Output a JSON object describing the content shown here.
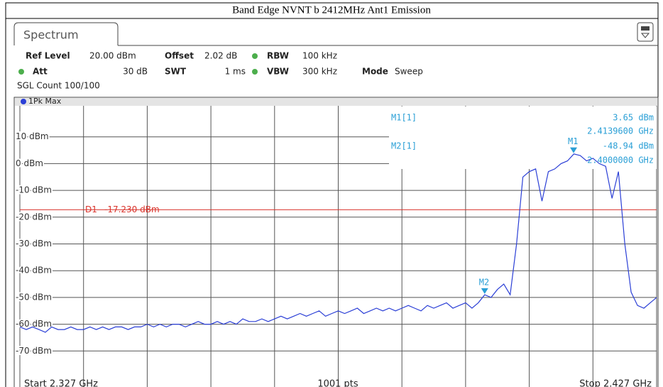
{
  "header": {
    "title": "Band Edge NVNT b 2412MHz Ant1 Emission"
  },
  "tab": "Spectrum",
  "settings": {
    "ref_level_label": "Ref Level",
    "ref_level": "20.00 dBm",
    "offset_label": "Offset",
    "offset": "2.02 dB",
    "rbw_label": "RBW",
    "rbw": "100 kHz",
    "att_label": "Att",
    "att": "30 dB",
    "swt_label": "SWT",
    "swt": "1 ms",
    "vbw_label": "VBW",
    "vbw": "300 kHz",
    "mode_label": "Mode",
    "mode": "Sweep",
    "sgl_count": "SGL Count 100/100"
  },
  "trace_label": "1Pk Max",
  "footer": {
    "start": "Start 2.327 GHz",
    "points": "1001 pts",
    "stop": "Stop 2.427 GHz"
  },
  "chart_data": {
    "type": "line",
    "xlim": [
      2.327,
      2.427
    ],
    "ylim": [
      -80,
      20
    ],
    "yticks": [
      {
        "value": 10,
        "label": "10 dBm"
      },
      {
        "value": 0,
        "label": "0 dBm"
      },
      {
        "value": -10,
        "label": "-10 dBm"
      },
      {
        "value": -20,
        "label": "-20 dBm"
      },
      {
        "value": -30,
        "label": "-30 dBm"
      },
      {
        "value": -40,
        "label": "-40 dBm"
      },
      {
        "value": -50,
        "label": "-50 dBm"
      },
      {
        "value": -60,
        "label": "-60 dBm"
      },
      {
        "value": -70,
        "label": "-70 dBm"
      }
    ],
    "grid": true,
    "display_line": {
      "label": "D1",
      "value": -17.23,
      "value_label": "-17.230 dBm",
      "color": "#d9332b"
    },
    "markers": [
      {
        "name": "M1",
        "readout": "M1[1]",
        "x": 2.41396,
        "y": 3.65,
        "x_label": "2.4139600 GHz",
        "y_label": "3.65 dBm"
      },
      {
        "name": "M2",
        "readout": "M2[1]",
        "x": 2.4,
        "y": -48.94,
        "x_label": "2.4000000 GHz",
        "y_label": "-48.94 dBm"
      }
    ],
    "series": [
      {
        "name": "1Pk Max",
        "color": "#2b3fd6",
        "x": [
          2.327,
          2.328,
          2.329,
          2.33,
          2.331,
          2.332,
          2.333,
          2.334,
          2.335,
          2.336,
          2.337,
          2.338,
          2.339,
          2.34,
          2.341,
          2.342,
          2.343,
          2.344,
          2.345,
          2.346,
          2.347,
          2.348,
          2.349,
          2.35,
          2.351,
          2.352,
          2.353,
          2.354,
          2.355,
          2.356,
          2.357,
          2.358,
          2.359,
          2.36,
          2.361,
          2.362,
          2.363,
          2.364,
          2.365,
          2.366,
          2.367,
          2.368,
          2.369,
          2.37,
          2.371,
          2.372,
          2.373,
          2.374,
          2.375,
          2.376,
          2.377,
          2.378,
          2.379,
          2.38,
          2.381,
          2.382,
          2.383,
          2.384,
          2.385,
          2.386,
          2.387,
          2.388,
          2.389,
          2.39,
          2.391,
          2.392,
          2.393,
          2.394,
          2.395,
          2.396,
          2.397,
          2.398,
          2.399,
          2.4,
          2.401,
          2.402,
          2.403,
          2.404,
          2.405,
          2.406,
          2.407,
          2.408,
          2.409,
          2.41,
          2.411,
          2.412,
          2.413,
          2.414,
          2.415,
          2.416,
          2.417,
          2.418,
          2.419,
          2.42,
          2.421,
          2.422,
          2.423,
          2.424,
          2.425,
          2.426,
          2.427
        ],
        "values": [
          -61,
          -62,
          -61,
          -62,
          -63,
          -61,
          -62,
          -62,
          -61,
          -62,
          -62,
          -61,
          -62,
          -61,
          -62,
          -61,
          -61,
          -62,
          -61,
          -61,
          -60,
          -61,
          -60,
          -61,
          -60,
          -60,
          -61,
          -60,
          -59,
          -60,
          -60,
          -59,
          -60,
          -59,
          -60,
          -58,
          -59,
          -59,
          -58,
          -59,
          -58,
          -57,
          -58,
          -57,
          -56,
          -57,
          -56,
          -55,
          -57,
          -56,
          -55,
          -56,
          -55,
          -54,
          -56,
          -55,
          -54,
          -55,
          -54,
          -55,
          -54,
          -53,
          -54,
          -55,
          -53,
          -54,
          -53,
          -52,
          -54,
          -53,
          -52,
          -54,
          -52,
          -49,
          -50,
          -47,
          -45,
          -49,
          -30,
          -5,
          -3,
          -2,
          -14,
          -3,
          -2,
          0,
          1,
          3.6,
          3,
          1,
          2,
          0,
          -1,
          -13,
          -3,
          -30,
          -48,
          -53,
          -54,
          -52,
          -50
        ]
      }
    ]
  }
}
